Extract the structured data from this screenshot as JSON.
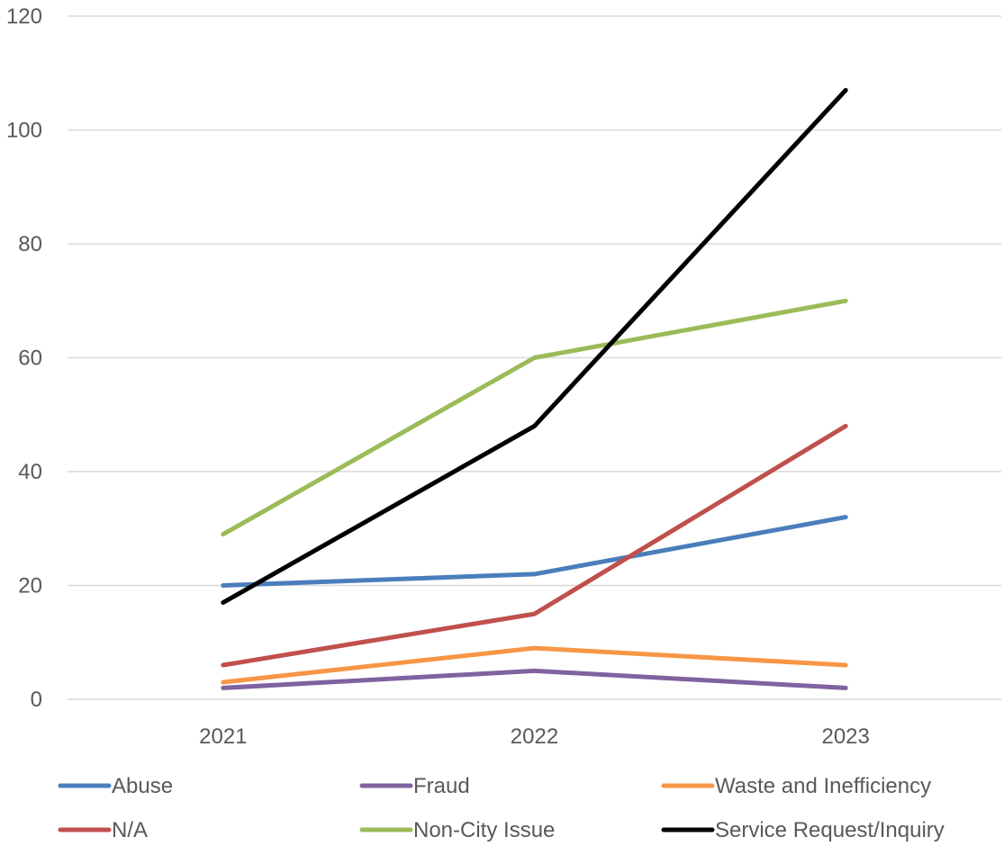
{
  "chart_data": {
    "type": "line",
    "categories": [
      "2021",
      "2022",
      "2023"
    ],
    "ylim": [
      0,
      120
    ],
    "yticks": [
      0,
      20,
      40,
      60,
      80,
      100,
      120
    ],
    "grid": true,
    "legend_position": "bottom",
    "series": [
      {
        "name": "Abuse",
        "values": [
          20,
          22,
          32
        ],
        "color": "#4a7ebb"
      },
      {
        "name": "Fraud",
        "values": [
          2,
          5,
          2
        ],
        "color": "#7f62a0"
      },
      {
        "name": "Waste and Inefficiency",
        "values": [
          3,
          9,
          6
        ],
        "color": "#f79646"
      },
      {
        "name": "N/A",
        "values": [
          6,
          15,
          48
        ],
        "color": "#c0504d"
      },
      {
        "name": "Non-City Issue",
        "values": [
          29,
          60,
          70
        ],
        "color": "#9bbb59"
      },
      {
        "name": "Service Request/Inquiry",
        "values": [
          17,
          48,
          107
        ],
        "color": "#000000"
      }
    ]
  }
}
